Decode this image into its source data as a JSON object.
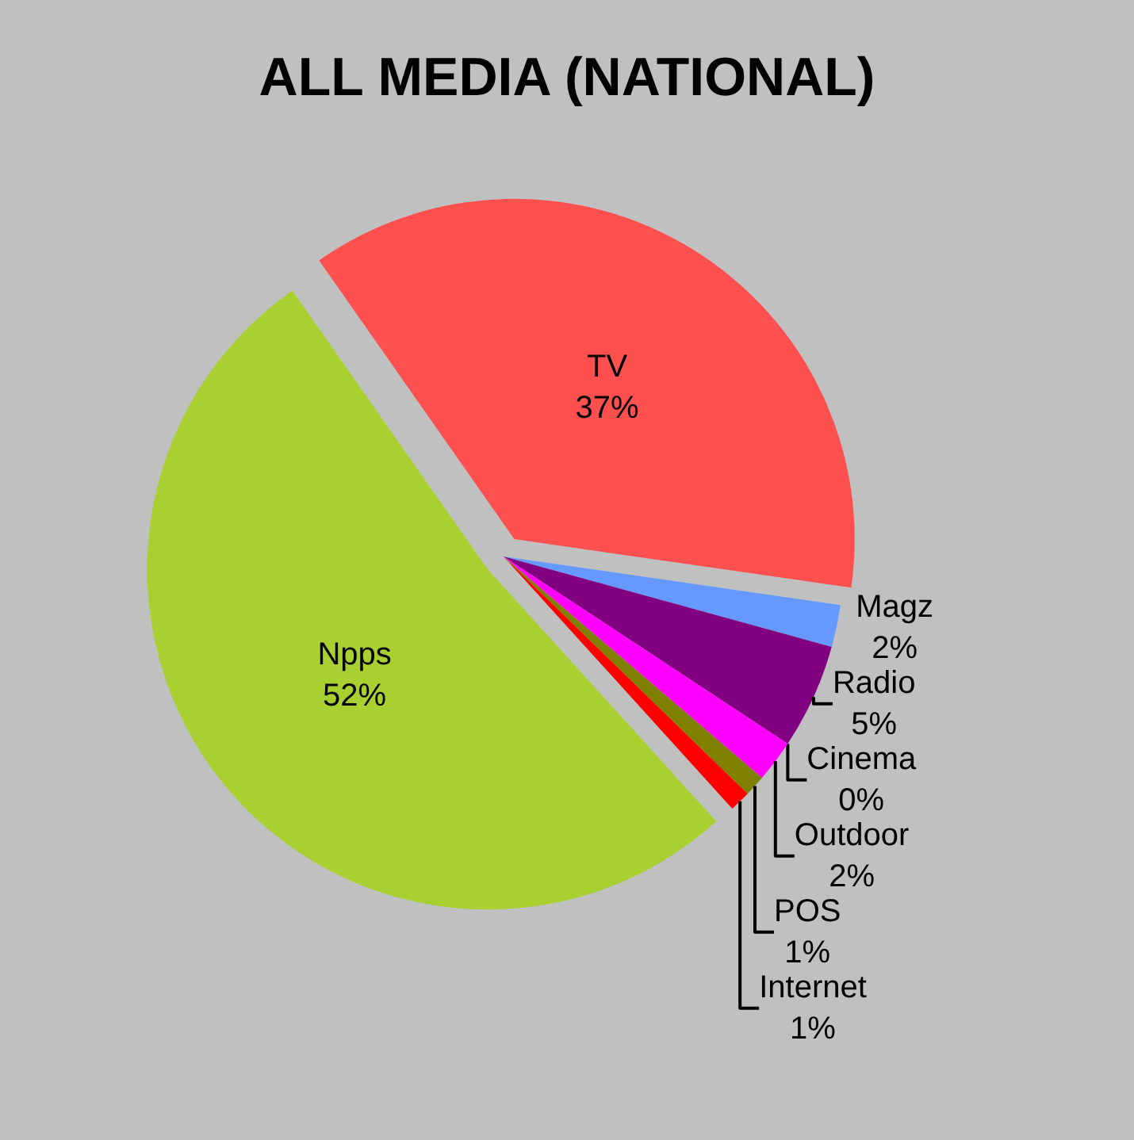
{
  "chart_data": {
    "type": "pie",
    "title": "ALL MEDIA (NATIONAL)",
    "categories": [
      "TV",
      "Magz",
      "Radio",
      "Cinema",
      "Outdoor",
      "POS",
      "Internet",
      "Npps"
    ],
    "values": [
      37,
      2,
      5,
      0,
      2,
      1,
      1,
      52
    ],
    "value_labels": [
      "37%",
      "2%",
      "5%",
      "0%",
      "2%",
      "1%",
      "1%",
      "52%"
    ],
    "colors": [
      "#ff5050",
      "#6699ff",
      "#800080",
      "#ff6600",
      "#ff00ff",
      "#808000",
      "#ff0000",
      "#a8d030"
    ]
  }
}
